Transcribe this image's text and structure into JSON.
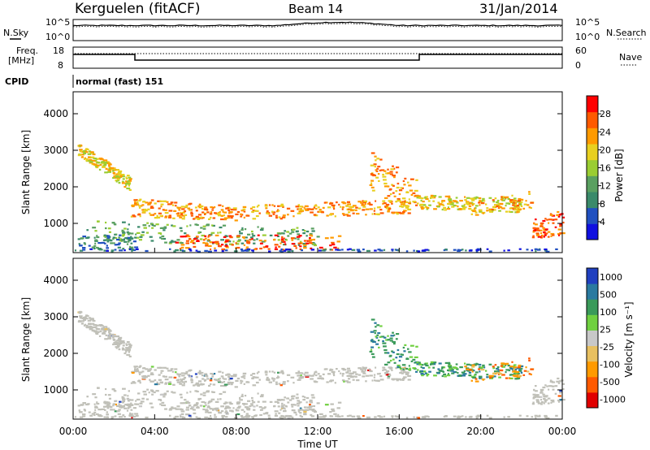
{
  "header": {
    "station": "Kerguelen (fitACF)",
    "beam": "Beam 14",
    "date": "31/Jan/2014"
  },
  "panels": {
    "nsky_label": "N.Sky",
    "nsearch_label": "N.Search",
    "noise_ticks": [
      "10^5",
      "10^0"
    ],
    "freq_label_1": "Freq.",
    "freq_label_2": "[MHz]",
    "freq_ticks": [
      "18",
      "8"
    ],
    "nave_label": "Nave",
    "nave_ticks": [
      "60",
      "0"
    ],
    "cpid_label": "CPID",
    "cpid_value": "normal (fast) 151"
  },
  "colors": {
    "power": [
      "#1010e0",
      "#2050c0",
      "#3a8a6a",
      "#5aa060",
      "#9acd32",
      "#e8d020",
      "#ff9a00",
      "#ff5a00",
      "#ff0000"
    ],
    "velocity": [
      "#e00000",
      "#ff5a00",
      "#ff9a00",
      "#e8c060",
      "#c8c8c8",
      "#70d040",
      "#3a9a5a",
      "#2a7aa0",
      "#2040c0"
    ],
    "ground_scatter": "#c0c0b8"
  },
  "chart_data": [
    {
      "type": "heatmap",
      "name": "power",
      "title": "",
      "xlabel": "Time UT",
      "ylabel": "Slant Range [km]",
      "x_ticks": [
        "00:00",
        "04:00",
        "08:00",
        "12:00",
        "16:00",
        "20:00",
        "00:00"
      ],
      "xlim_hours": [
        0,
        24
      ],
      "ylim": [
        200,
        4600
      ],
      "y_ticks": [
        1000,
        2000,
        3000,
        4000
      ],
      "colorbar_label": "Power [dB]",
      "colorbar_ticks": [
        4,
        8,
        12,
        16,
        20,
        24,
        28
      ],
      "colorbar_range": [
        0,
        32
      ]
    },
    {
      "type": "heatmap",
      "name": "velocity",
      "title": "",
      "xlabel": "Time UT",
      "ylabel": "Slant Range [km]",
      "x_ticks": [
        "00:00",
        "04:00",
        "08:00",
        "12:00",
        "16:00",
        "20:00",
        "00:00"
      ],
      "xlim_hours": [
        0,
        24
      ],
      "ylim": [
        200,
        4600
      ],
      "y_ticks": [
        1000,
        2000,
        3000,
        4000
      ],
      "colorbar_label": "Velocity [m s⁻¹]",
      "colorbar_ticks": [
        1000,
        500,
        100,
        25,
        -25,
        -100,
        -500,
        -1000
      ]
    }
  ]
}
